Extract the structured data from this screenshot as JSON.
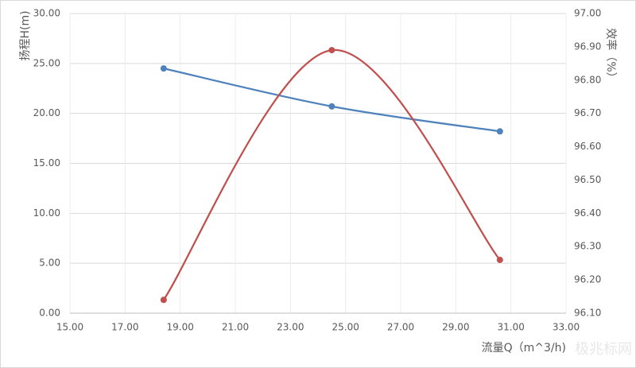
{
  "chart_data": {
    "type": "line",
    "smooth": true,
    "grid": true,
    "x_label": "流量Q（m^3/h)",
    "y_label": "扬程H(m)",
    "y2_label": "效率（%）",
    "watermark": "极兆标网",
    "x": [
      18.4,
      24.5,
      30.6
    ],
    "xlim": [
      15,
      33
    ],
    "xticks": [
      {
        "value": 15,
        "label": "15.00"
      },
      {
        "value": 17,
        "label": "17.00"
      },
      {
        "value": 19,
        "label": "19.00"
      },
      {
        "value": 21,
        "label": "21.00"
      },
      {
        "value": 23,
        "label": "23.00"
      },
      {
        "value": 25,
        "label": "25.00"
      },
      {
        "value": 27,
        "label": "27.00"
      },
      {
        "value": 29,
        "label": "29.00"
      },
      {
        "value": 31,
        "label": "31.00"
      },
      {
        "value": 33,
        "label": "33.00"
      }
    ],
    "ylim": [
      0,
      30
    ],
    "yticks": [
      {
        "value": 0,
        "label": "0.00"
      },
      {
        "value": 5,
        "label": "5.00"
      },
      {
        "value": 10,
        "label": "10.00"
      },
      {
        "value": 15,
        "label": "15.00"
      },
      {
        "value": 20,
        "label": "20.00"
      },
      {
        "value": 25,
        "label": "25.00"
      },
      {
        "value": 30,
        "label": "30.00"
      }
    ],
    "y2lim": [
      96.1,
      97.0
    ],
    "y2ticks": [
      {
        "value": 96.1,
        "label": "96.10"
      },
      {
        "value": 96.2,
        "label": "96.20"
      },
      {
        "value": 96.3,
        "label": "96.30"
      },
      {
        "value": 96.4,
        "label": "96.40"
      },
      {
        "value": 96.5,
        "label": "96.50"
      },
      {
        "value": 96.6,
        "label": "96.60"
      },
      {
        "value": 96.7,
        "label": "96.70"
      },
      {
        "value": 96.8,
        "label": "96.80"
      },
      {
        "value": 96.9,
        "label": "96.90"
      },
      {
        "value": 97.0,
        "label": "97.00"
      }
    ],
    "series": [
      {
        "color": "#4f81bd",
        "values": [
          24.5,
          20.7,
          18.2
        ]
      },
      {
        "color": "#c0504d",
        "axis": "y2",
        "values": [
          96.14,
          96.89,
          96.26
        ]
      }
    ]
  }
}
